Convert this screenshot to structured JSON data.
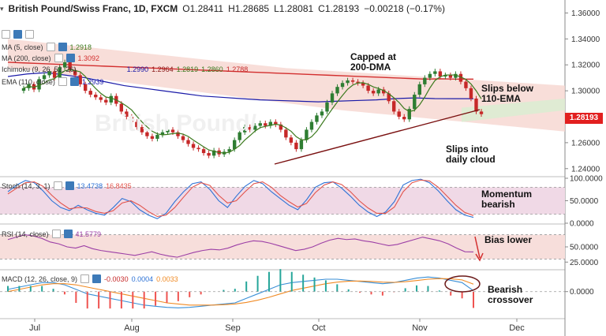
{
  "header": {
    "symbol": "British Pound/Swiss Franc, 1D, FXCM",
    "open": "O1.28411",
    "high": "H1.28685",
    "low": "L1.28081",
    "close": "C1.28193",
    "change": "−0.00218 (−0.17%)"
  },
  "indicators": {
    "ma5": {
      "label": "MA (5, close)",
      "value": "1.2918"
    },
    "ma200": {
      "label": "MA (200, close)",
      "value": "1.3092"
    },
    "ichimoku": {
      "label": "Ichimoku (9, 26, 52, 26)",
      "values": [
        "1.2990",
        "1.2964",
        "1.2819",
        "1.2860",
        "1.2788"
      ]
    },
    "ema110": {
      "label": "EMA (110, close)",
      "value": "1.2939"
    },
    "stoch": {
      "label": "Stoch (14, 3, 1)",
      "k": "13.4738",
      "d": "16.8435"
    },
    "rsi": {
      "label": "RSI (14, close)",
      "value": "41.5779"
    },
    "macd": {
      "label": "MACD (12, 26, close, 9)",
      "hist": "-0.0030",
      "macd": "0.0004",
      "signal": "0.0033"
    }
  },
  "annotations": {
    "capped": "Capped at\n200-DMA",
    "slips_ema": "Slips below\n110-EMA",
    "slips_cloud": "Slips into\ndaily cloud",
    "momentum": "Momentum\nbearish",
    "bias": "Bias lower",
    "macd": "Bearish\ncrossover"
  },
  "price_tag": "1.28193",
  "colors": {
    "bull": "#2e7d32",
    "bear": "#c62828",
    "ma200": "#d32f2f",
    "ema110": "#1a1aa8",
    "ma5": "#3c7a1e",
    "cloud": "#f6d6cf",
    "cloud_green": "#dcecd2",
    "stoch_k": "#2e73d6",
    "stoch_d": "#e2534b",
    "rsi": "#9c3fa6",
    "macd": "#3a8fd6",
    "signal": "#f08a24",
    "band": "#f0d9e6",
    "trend": "#7a1010"
  },
  "chart_data": [
    {
      "type": "line",
      "panel": "price",
      "title": "British Pound/Swiss Franc, 1D, FXCM",
      "x_ticks": [
        "Jul",
        "Aug",
        "Sep",
        "Oct",
        "Nov",
        "Dec"
      ],
      "y_ticks": [
        "1.36000",
        "1.34000",
        "1.32000",
        "1.30000",
        "1.28193",
        "1.26000",
        "1.24000"
      ],
      "ylim": [
        1.235,
        1.37
      ],
      "series": [
        {
          "name": "Close",
          "values": [
            1.302,
            1.305,
            1.301,
            1.309,
            1.312,
            1.315,
            1.31,
            1.318,
            1.322,
            1.316,
            1.312,
            1.305,
            1.3,
            1.297,
            1.295,
            1.293,
            1.291,
            1.296,
            1.29,
            1.284,
            1.28,
            1.276,
            1.272,
            1.268,
            1.265,
            1.263,
            1.266,
            1.268,
            1.27,
            1.268,
            1.265,
            1.262,
            1.259,
            1.256,
            1.255,
            1.252,
            1.25,
            1.254,
            1.251,
            1.253,
            1.255,
            1.262,
            1.268,
            1.272,
            1.27,
            1.273,
            1.275,
            1.273,
            1.276,
            1.274,
            1.27,
            1.264,
            1.26,
            1.255,
            1.262,
            1.27,
            1.276,
            1.281,
            1.284,
            1.291,
            1.298,
            1.303,
            1.306,
            1.308,
            1.307,
            1.306,
            1.304,
            1.3,
            1.298,
            1.301,
            1.298,
            1.292,
            1.284,
            1.28,
            1.278,
            1.286,
            1.297,
            1.305,
            1.31,
            1.313,
            1.315,
            1.311,
            1.312,
            1.31,
            1.313,
            1.307,
            1.302,
            1.294,
            1.284,
            1.282
          ]
        },
        {
          "name": "MA (200, close)",
          "values": [
            1.322,
            1.3215,
            1.321,
            1.3205,
            1.32,
            1.3195,
            1.319,
            1.3185,
            1.318,
            1.3175,
            1.317,
            1.3165,
            1.316,
            1.3155,
            1.315,
            1.3145,
            1.314,
            1.3135,
            1.313,
            1.3125,
            1.312,
            1.3115,
            1.311,
            1.3105,
            1.31,
            1.3095,
            1.309,
            1.3092,
            1.309,
            1.309
          ]
        },
        {
          "name": "EMA (110, close)",
          "values": [
            1.311,
            1.313,
            1.314,
            1.312,
            1.31,
            1.307,
            1.304,
            1.302,
            1.3,
            1.298,
            1.296,
            1.295,
            1.294,
            1.293,
            1.2925,
            1.292,
            1.2915,
            1.292,
            1.2925,
            1.293,
            1.294,
            1.2945,
            1.294,
            1.2939,
            1.2939
          ]
        }
      ],
      "trendline": {
        "from": [
          1.25,
          "Sep"
        ],
        "to": [
          1.286,
          "Nov"
        ]
      }
    },
    {
      "type": "line",
      "panel": "stoch",
      "title": "Stoch (14, 3, 1)",
      "y_ticks": [
        "100.0000",
        "50.0000",
        "0.0000"
      ],
      "ylim": [
        0,
        100
      ],
      "band": [
        20,
        80
      ],
      "series": [
        {
          "name": "%K",
          "values": [
            70,
            85,
            95,
            90,
            72,
            50,
            35,
            28,
            40,
            30,
            22,
            18,
            35,
            55,
            48,
            30,
            18,
            10,
            22,
            48,
            70,
            88,
            92,
            75,
            50,
            35,
            60,
            82,
            95,
            88,
            70,
            55,
            40,
            30,
            52,
            80,
            90,
            92,
            78,
            60,
            40,
            25,
            15,
            25,
            48,
            85,
            95,
            98,
            90,
            72,
            50,
            30,
            18,
            13
          ]
        },
        {
          "name": "%D",
          "values": [
            65,
            78,
            90,
            92,
            82,
            62,
            45,
            32,
            35,
            34,
            26,
            22,
            28,
            45,
            50,
            40,
            26,
            15,
            18,
            35,
            58,
            80,
            90,
            84,
            62,
            45,
            50,
            70,
            88,
            92,
            80,
            62,
            48,
            36,
            44,
            68,
            85,
            92,
            86,
            70,
            50,
            34,
            22,
            22,
            36,
            70,
            90,
            96,
            94,
            80,
            60,
            40,
            24,
            17
          ]
        }
      ]
    },
    {
      "type": "line",
      "panel": "rsi",
      "title": "RSI (14, close)",
      "y_ticks": [
        "50.0000",
        "25.0000"
      ],
      "ylim": [
        15,
        85
      ],
      "band": [
        30,
        70
      ],
      "series": [
        {
          "name": "RSI",
          "values": [
            62,
            66,
            70,
            68,
            64,
            58,
            55,
            50,
            48,
            52,
            47,
            44,
            42,
            40,
            38,
            36,
            39,
            42,
            38,
            35,
            33,
            37,
            41,
            44,
            46,
            45,
            48,
            53,
            57,
            60,
            59,
            56,
            52,
            48,
            44,
            46,
            50,
            56,
            61,
            64,
            62,
            63,
            60,
            58,
            55,
            52,
            54,
            58,
            62,
            66,
            63,
            60,
            55,
            48,
            42,
            41.6
          ]
        }
      ]
    },
    {
      "type": "line",
      "panel": "macd",
      "title": "MACD (12, 26, close, 9)",
      "y_ticks": [
        "0.0000"
      ],
      "ylim": [
        -0.012,
        0.009
      ],
      "series": [
        {
          "name": "MACD",
          "values": [
            0.001,
            0.002,
            0.003,
            0.004,
            0.004,
            0.003,
            0.001,
            -0.001,
            -0.002,
            -0.003,
            -0.004,
            -0.005,
            -0.006,
            -0.0065,
            -0.007,
            -0.0072,
            -0.007,
            -0.0065,
            -0.006,
            -0.0055,
            -0.005,
            -0.003,
            -0.001,
            0.001,
            0.003,
            0.004,
            0.0045,
            0.005,
            0.0055,
            0.0055,
            0.005,
            0.0045,
            0.004,
            0.0035,
            0.004,
            0.005,
            0.006,
            0.0065,
            0.006,
            0.005,
            0.004,
            0.0004
          ]
        },
        {
          "name": "Signal",
          "values": [
            0.0,
            0.001,
            0.002,
            0.003,
            0.0035,
            0.0035,
            0.003,
            0.002,
            0.001,
            0.0,
            -0.001,
            -0.002,
            -0.003,
            -0.004,
            -0.005,
            -0.0055,
            -0.006,
            -0.006,
            -0.006,
            -0.0058,
            -0.0055,
            -0.0048,
            -0.0038,
            -0.0025,
            -0.001,
            0.0005,
            0.0015,
            0.0025,
            0.0035,
            0.0042,
            0.0046,
            0.0047,
            0.0045,
            0.0042,
            0.0041,
            0.0044,
            0.0049,
            0.0055,
            0.0058,
            0.0057,
            0.0052,
            0.0033
          ]
        }
      ]
    }
  ]
}
